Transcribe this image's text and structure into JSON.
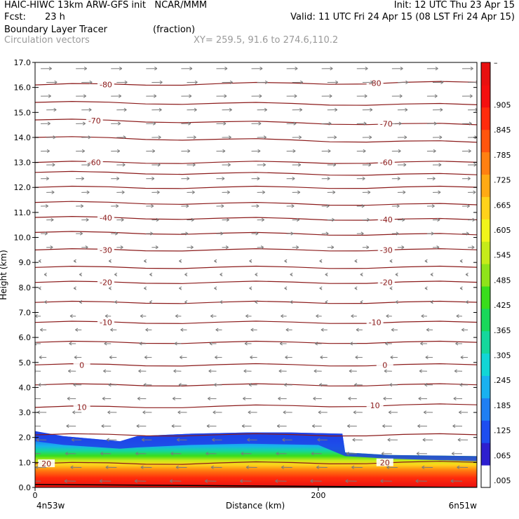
{
  "header": {
    "line1_left": "HAIC-HIWC 13km ARW-GFS init   NCAR/MMM",
    "line1_right": "Init: 12 UTC Thu 23 Apr 15",
    "line2_left_label": "Fcst:",
    "line2_left_value": "23 h",
    "line2_right": "Valid: 11 UTC Fri 24 Apr 15 (08 LST Fri 24 Apr 15)",
    "field_name": "Boundary Layer Tracer",
    "field_unit": "(fraction)",
    "vector_name": "Circulation vectors",
    "cross_section": "XY= 259.5, 91.6 to 274.6,110.2"
  },
  "colors": {
    "contour": "#8b1a1a",
    "vector": "#7a7a7a",
    "colorbar": [
      "#ffffff",
      "#2d1fcf",
      "#1e4ef0",
      "#1f7ff2",
      "#19b1f0",
      "#12d6d6",
      "#15d79c",
      "#18d85a",
      "#39dd1c",
      "#8fe31a",
      "#c6eb1a",
      "#f1f51b",
      "#ffd21b",
      "#ffaa14",
      "#ff8011",
      "#ff550e",
      "#ff2b0c",
      "#f40f0f",
      "#e81010"
    ]
  },
  "chart_data": {
    "type": "cross-section",
    "ylabel": "Height (km)",
    "xlabel": "Distance (km)",
    "ylim": [
      0,
      17
    ],
    "xlim": [
      0,
      312
    ],
    "yticks": [
      "0.0",
      "1.0",
      "2.0",
      "3.0",
      "4.0",
      "5.0",
      "6.0",
      "7.0",
      "8.0",
      "9.0",
      "10.0",
      "11.0",
      "12.0",
      "13.0",
      "14.0",
      "15.0",
      "16.0",
      "17.0"
    ],
    "xticks": [
      {
        "value": 0,
        "label": "0"
      },
      {
        "value": 200,
        "label": "200"
      }
    ],
    "x_endpoints": {
      "left": "4n53w",
      "right": "6n51w"
    },
    "colorbar_labels": [
      ".005",
      ".065",
      ".125",
      ".185",
      ".245",
      ".305",
      ".365",
      ".425",
      ".485",
      ".545",
      ".605",
      ".665",
      ".725",
      ".785",
      ".845",
      ".905",
      "–"
    ],
    "temperature_contours": [
      {
        "value": -80,
        "label": "-80",
        "left_z": 16.1,
        "right_z": 16.2,
        "label_x": [
          50,
          240
        ]
      },
      {
        "value": -70,
        "label": "-70",
        "left_z": 14.7,
        "right_z": 14.5,
        "label_x": [
          42,
          248
        ]
      },
      {
        "value": -60,
        "label": "-60",
        "left_z": 13.0,
        "right_z": 13.0,
        "label_x": [
          42,
          248
        ]
      },
      {
        "value": -40,
        "label": "-40",
        "left_z": 10.8,
        "right_z": 10.7,
        "label_x": [
          50,
          248
        ]
      },
      {
        "value": -30,
        "label": "-30",
        "left_z": 9.5,
        "right_z": 9.5,
        "label_x": [
          50,
          248
        ]
      },
      {
        "value": -20,
        "label": "-20",
        "left_z": 8.2,
        "right_z": 8.2,
        "label_x": [
          50,
          248
        ]
      },
      {
        "value": -10,
        "label": "-10",
        "left_z": 6.6,
        "right_z": 6.6,
        "label_x": [
          50,
          240
        ]
      },
      {
        "value": 0,
        "label": "0",
        "left_z": 4.9,
        "right_z": 4.9,
        "label_x": [
          33,
          247
        ]
      },
      {
        "value": 10,
        "label": "10",
        "left_z": 3.2,
        "right_z": 3.3,
        "label_x": [
          33,
          240
        ]
      },
      {
        "value": 20,
        "label": "20",
        "left_z": 0.95,
        "right_z": 1.0,
        "label_x": [
          8,
          247
        ]
      }
    ],
    "unlabeled_contours": [
      {
        "left_z": 15.4,
        "right_z": 15.3
      },
      {
        "left_z": 14.0,
        "right_z": 13.8
      },
      {
        "left_z": 12.6,
        "right_z": 12.5
      },
      {
        "left_z": 12.0,
        "right_z": 12.0
      },
      {
        "left_z": 11.4,
        "right_z": 11.3
      },
      {
        "left_z": 10.2,
        "right_z": 10.1
      },
      {
        "left_z": 8.8,
        "right_z": 8.8
      },
      {
        "left_z": 7.4,
        "right_z": 7.4
      },
      {
        "left_z": 5.8,
        "right_z": 5.8
      },
      {
        "left_z": 4.1,
        "right_z": 4.1
      },
      {
        "left_z": 2.1,
        "right_z": 2.1
      }
    ]
  }
}
